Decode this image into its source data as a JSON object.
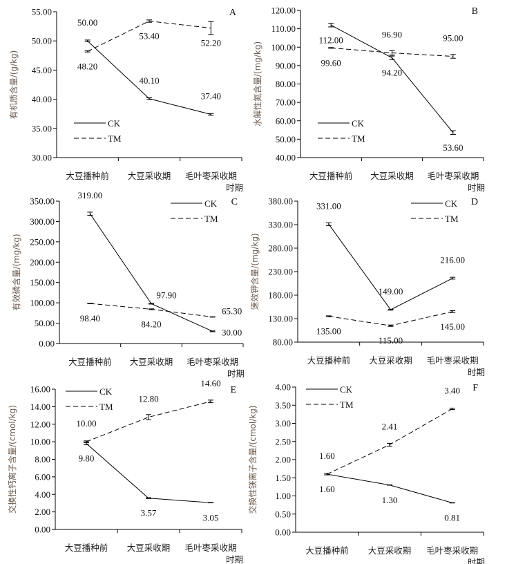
{
  "chart_data": [
    {
      "type": "line",
      "panel": "A",
      "ylabel": "有机质含量/(g/kg)",
      "xlabel": "时期",
      "categories": [
        "大豆播种前",
        "大豆采收期",
        "毛叶枣采收期"
      ],
      "ylim": [
        30,
        55
      ],
      "ystep": 5,
      "legend": "bottom-left",
      "series": [
        {
          "name": "CK",
          "style": "solid",
          "values": [
            50.0,
            40.1,
            37.4
          ],
          "errors": [
            0.15,
            0.15,
            0.15
          ],
          "labels": [
            "50.00",
            "40.10",
            "37.40"
          ],
          "label_side": [
            "above",
            "above",
            "above"
          ]
        },
        {
          "name": "TM",
          "style": "dashed",
          "values": [
            48.2,
            53.4,
            52.2
          ],
          "errors": [
            0.1,
            0.2,
            1.1
          ],
          "labels": [
            "48.20",
            "53.40",
            "52.20"
          ],
          "label_side": [
            "below",
            "below",
            "below"
          ]
        }
      ]
    },
    {
      "type": "line",
      "panel": "B",
      "ylabel": "水解性氮含量/(mg/kg)",
      "xlabel": "时期",
      "categories": [
        "大豆播种前",
        "大豆采收期",
        "毛叶枣采收期"
      ],
      "ylim": [
        40,
        120
      ],
      "ystep": 10,
      "legend": "bottom-left",
      "series": [
        {
          "name": "CK",
          "style": "solid",
          "values": [
            112.0,
            94.2,
            53.6
          ],
          "errors": [
            1.0,
            1.0,
            1.0
          ],
          "labels": [
            "112.00",
            "94.20",
            "53.60"
          ],
          "label_side": [
            "below",
            "below",
            "below"
          ]
        },
        {
          "name": "TM",
          "style": "dashed",
          "values": [
            99.6,
            96.9,
            95.0
          ],
          "errors": [
            0.2,
            1.2,
            1.0
          ],
          "labels": [
            "99.60",
            "96.90",
            "95.00"
          ],
          "label_side": [
            "below",
            "above",
            "above"
          ]
        }
      ]
    },
    {
      "type": "line",
      "panel": "C",
      "ylabel": "有效磷含量/(mg/kg)",
      "xlabel": "时期",
      "categories": [
        "大豆播种前",
        "大豆采收期",
        "毛叶枣采收期"
      ],
      "ylim": [
        0,
        350
      ],
      "ystep": 50,
      "legend": "top-right",
      "series": [
        {
          "name": "CK",
          "style": "solid",
          "values": [
            319.0,
            97.9,
            30.0
          ],
          "errors": [
            4,
            1,
            1
          ],
          "labels": [
            "319.00",
            "97.90",
            "30.00"
          ],
          "label_side": [
            "above",
            "above-right",
            "right"
          ]
        },
        {
          "name": "TM",
          "style": "dashed",
          "values": [
            98.4,
            84.2,
            65.3
          ],
          "errors": [
            0.5,
            1,
            0.5
          ],
          "labels": [
            "98.40",
            "84.20",
            "65.30"
          ],
          "label_side": [
            "below",
            "below",
            "right-up"
          ]
        }
      ]
    },
    {
      "type": "line",
      "panel": "D",
      "ylabel": "速效钾含量/(mg/kg)",
      "xlabel": "时期",
      "categories": [
        "大豆播种前",
        "大豆采收期",
        "毛叶枣采收期"
      ],
      "ylim": [
        80,
        380
      ],
      "ystep": 50,
      "legend": "top-right",
      "series": [
        {
          "name": "CK",
          "style": "solid",
          "values": [
            331.0,
            149.0,
            216.0
          ],
          "errors": [
            3,
            1,
            2
          ],
          "labels": [
            "331.00",
            "149.00",
            "216.00"
          ],
          "label_side": [
            "above",
            "above",
            "above"
          ]
        },
        {
          "name": "TM",
          "style": "dashed",
          "values": [
            135.0,
            115.0,
            145.0
          ],
          "errors": [
            1,
            1.5,
            2
          ],
          "labels": [
            "135.00",
            "115.00",
            "145.00"
          ],
          "label_side": [
            "below",
            "below",
            "below"
          ]
        }
      ]
    },
    {
      "type": "line",
      "panel": "E",
      "ylabel": "交换性钙离子含量/(cmol/kg)",
      "xlabel": "时期",
      "categories": [
        "大豆播种前",
        "大豆采收期",
        "毛叶枣采收期"
      ],
      "ylim": [
        0,
        16
      ],
      "ystep": 2,
      "legend": "top-left",
      "series": [
        {
          "name": "CK",
          "style": "solid",
          "values": [
            9.8,
            3.57,
            3.05
          ],
          "errors": [
            0.15,
            0.05,
            0.02
          ],
          "labels": [
            "9.80",
            "3.57",
            "3.05"
          ],
          "label_side": [
            "below",
            "below",
            "below"
          ]
        },
        {
          "name": "TM",
          "style": "dashed",
          "values": [
            10.0,
            12.8,
            14.6
          ],
          "errors": [
            0.1,
            0.3,
            0.15
          ],
          "labels": [
            "10.00",
            "12.80",
            "14.60"
          ],
          "label_side": [
            "above",
            "above",
            "above"
          ]
        }
      ]
    },
    {
      "type": "line",
      "panel": "F",
      "ylabel": "交换性镁离子含量/(cmol/kg)",
      "xlabel": "时期",
      "categories": [
        "大豆播种前",
        "大豆采收期",
        "毛叶枣采收期"
      ],
      "ylim": [
        0,
        4
      ],
      "ystep": 0.5,
      "legend": "top-left",
      "series": [
        {
          "name": "CK",
          "style": "solid",
          "values": [
            1.6,
            1.3,
            0.81
          ],
          "errors": [
            0.02,
            0.005,
            0.005
          ],
          "labels": [
            "1.60",
            "1.30",
            "0.81"
          ],
          "label_side": [
            "below",
            "below",
            "below"
          ]
        },
        {
          "name": "TM",
          "style": "dashed",
          "values": [
            1.6,
            2.41,
            3.4
          ],
          "errors": [
            0.02,
            0.04,
            0.02
          ],
          "labels": [
            "1.60",
            "2.41",
            "3.40"
          ],
          "label_side": [
            "above",
            "above",
            "above"
          ]
        }
      ]
    }
  ]
}
